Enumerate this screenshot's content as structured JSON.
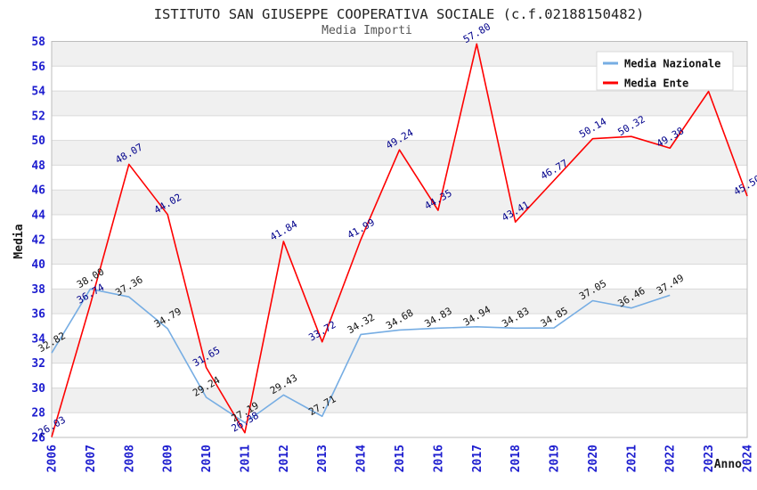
{
  "header": {
    "title": "ISTITUTO SAN GIUSEPPE COOPERATIVA SOCIALE (c.f.02188150482)",
    "subtitle": "Media Importi"
  },
  "chart_data": {
    "type": "line",
    "title": "ISTITUTO SAN GIUSEPPE COOPERATIVA SOCIALE (c.f.02188150482)",
    "subtitle": "Media Importi",
    "xlabel": "Anno",
    "ylabel": "Media",
    "x": [
      "2006",
      "2007",
      "2008",
      "2009",
      "2010",
      "2011",
      "2012",
      "2013",
      "2014",
      "2015",
      "2016",
      "2017",
      "2018",
      "2019",
      "2020",
      "2021",
      "2022",
      "2023",
      "2024"
    ],
    "ylim": [
      26,
      58
    ],
    "y_ticks": [
      26,
      28,
      30,
      32,
      34,
      36,
      38,
      40,
      42,
      44,
      46,
      48,
      50,
      52,
      54,
      56,
      58
    ],
    "grid": "horizontal-bands",
    "band_colors": [
      "#f0f0f0",
      "#ffffff"
    ],
    "gridline_color": "#dadada",
    "border_color": "#bdbdbd",
    "axis_text_color": "#1d1dcf",
    "axis_title_color": "#1a1a1a",
    "legend_position": "top-right",
    "series": [
      {
        "name": "Media Nazionale",
        "color": "#76ADE3",
        "label_color": "#141414",
        "values": [
          32.82,
          38.0,
          37.36,
          34.79,
          29.24,
          27.19,
          29.43,
          27.71,
          34.32,
          34.68,
          34.83,
          34.94,
          34.83,
          34.85,
          37.05,
          36.46,
          37.49,
          null,
          null
        ],
        "labels": [
          "32.82",
          "38.00",
          "37.36",
          "34.79",
          "29.24",
          "27.19",
          "29.43",
          "27.71",
          "34.32",
          "34.68",
          "34.83",
          "34.94",
          "34.83",
          "34.85",
          "37.05",
          "36.46",
          "37.49",
          "",
          ""
        ]
      },
      {
        "name": "Media Ente",
        "color": "#FE0000",
        "label_color": "#00008B",
        "values": [
          26.03,
          36.74,
          48.07,
          44.02,
          31.65,
          26.38,
          41.84,
          33.72,
          41.99,
          49.24,
          44.35,
          57.8,
          43.41,
          46.77,
          50.14,
          50.32,
          49.38,
          53.96,
          45.5
        ],
        "labels": [
          "26.03",
          "36.74",
          "48.07",
          "44.02",
          "31.65",
          "26.38",
          "41.84",
          "33.72",
          "41.99",
          "49.24",
          "44.35",
          "57.80",
          "43.41",
          "46.77",
          "50.14",
          "50.32",
          "49.38",
          "",
          "45.50"
        ]
      }
    ]
  }
}
